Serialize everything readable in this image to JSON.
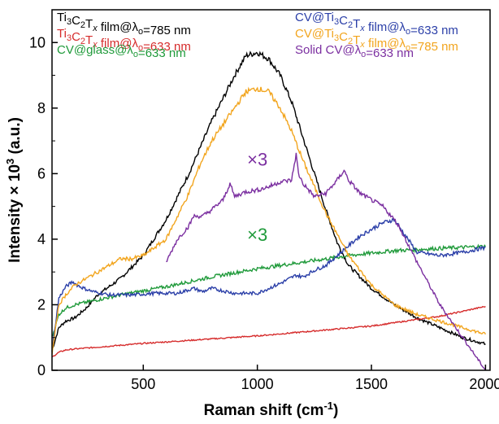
{
  "chart_data": {
    "type": "line",
    "title": "",
    "xlabel": "Raman shift (cm",
    "xlabel_sup": "-1",
    "xlabel_tail": ")",
    "ylabel": "Intensity × 10",
    "ylabel_sup": "3",
    "ylabel_tail": " (a.u.)",
    "xlim": [
      100,
      2020
    ],
    "ylim": [
      0,
      11
    ],
    "xticks": [
      500,
      1000,
      1500,
      2000
    ],
    "yticks": [
      0,
      2,
      4,
      6,
      8,
      10
    ],
    "legend_placement": "top",
    "annotations": [
      {
        "text": "×3",
        "x": 1000,
        "y": 6.25,
        "color": "#7b2fa0"
      },
      {
        "text": "×3",
        "x": 1000,
        "y": 3.95,
        "color": "#1f9a3a"
      }
    ],
    "series": [
      {
        "name": "Ti3C2Tx film@λo=785 nm",
        "color": "#000000",
        "x": [
          100,
          130,
          160,
          200,
          250,
          300,
          400,
          500,
          600,
          700,
          800,
          900,
          950,
          1000,
          1050,
          1100,
          1150,
          1200,
          1250,
          1300,
          1350,
          1400,
          1500,
          1600,
          1700,
          1800,
          1900,
          2000
        ],
        "y": [
          0.6,
          1.3,
          1.5,
          1.6,
          1.9,
          2.3,
          2.8,
          3.5,
          4.6,
          6.0,
          7.6,
          9.0,
          9.6,
          9.7,
          9.5,
          9.0,
          8.2,
          7.1,
          6.0,
          4.9,
          3.9,
          3.2,
          2.5,
          2.0,
          1.6,
          1.3,
          1.0,
          0.8
        ]
      },
      {
        "name": "Ti3C2Tx film@λo=633 nm",
        "color": "#d62c2c",
        "x": [
          100,
          130,
          160,
          200,
          500,
          1000,
          1500,
          1800,
          2000
        ],
        "y": [
          0.4,
          0.55,
          0.62,
          0.65,
          0.82,
          1.05,
          1.35,
          1.65,
          1.95
        ]
      },
      {
        "name": "CV@glass@λo=633 nm",
        "color": "#1f9a3a",
        "x": [
          100,
          130,
          160,
          200,
          400,
          600,
          800,
          1000,
          1200,
          1400,
          1600,
          1800,
          2000
        ],
        "y": [
          1.0,
          1.7,
          1.9,
          2.0,
          2.3,
          2.55,
          2.85,
          3.1,
          3.3,
          3.5,
          3.65,
          3.72,
          3.78
        ]
      },
      {
        "name": "CV@Ti3C2Tx film@λo=633 nm",
        "color": "#2b3fa8",
        "x": [
          100,
          130,
          160,
          190,
          210,
          240,
          280,
          350,
          450,
          550,
          650,
          720,
          760,
          800,
          900,
          1000,
          1100,
          1170,
          1200,
          1250,
          1300,
          1350,
          1400,
          1450,
          1500,
          1550,
          1600,
          1620,
          1700,
          1800,
          1900,
          2000
        ],
        "y": [
          0.6,
          2.2,
          2.55,
          2.7,
          2.6,
          2.5,
          2.4,
          2.3,
          2.3,
          2.35,
          2.35,
          2.5,
          2.4,
          2.5,
          2.35,
          2.35,
          2.65,
          2.9,
          2.85,
          3.05,
          3.2,
          3.5,
          3.8,
          4.1,
          4.3,
          4.5,
          4.6,
          4.4,
          3.6,
          3.5,
          3.6,
          3.75
        ]
      },
      {
        "name": "CV@Ti3C2Tx film@λo=785 nm",
        "color": "#f2a51e",
        "x": [
          100,
          130,
          160,
          200,
          250,
          300,
          400,
          450,
          500,
          600,
          700,
          750,
          800,
          900,
          950,
          1000,
          1050,
          1100,
          1150,
          1200,
          1300,
          1400,
          1500,
          1600,
          1700,
          1800,
          1900,
          2000
        ],
        "y": [
          0.5,
          2.0,
          2.3,
          2.6,
          2.8,
          3.0,
          3.4,
          3.4,
          3.5,
          4.0,
          5.4,
          6.3,
          7.0,
          8.0,
          8.5,
          8.6,
          8.5,
          8.0,
          7.3,
          6.4,
          4.8,
          3.5,
          2.6,
          2.0,
          1.7,
          1.5,
          1.3,
          1.1
        ]
      },
      {
        "name": "Solid CV@λo=633 nm",
        "color": "#7b2fa0",
        "x": [
          600,
          650,
          700,
          720,
          760,
          800,
          850,
          880,
          900,
          950,
          1000,
          1050,
          1100,
          1150,
          1170,
          1180,
          1200,
          1250,
          1300,
          1350,
          1380,
          1400,
          1450,
          1500,
          1550,
          1600,
          1620,
          1700,
          1800,
          1900,
          2000
        ],
        "y": [
          3.3,
          4.0,
          4.4,
          4.7,
          4.7,
          4.9,
          5.2,
          5.7,
          5.3,
          5.45,
          5.5,
          5.6,
          5.75,
          5.8,
          6.6,
          6.0,
          5.7,
          5.3,
          5.4,
          5.8,
          6.1,
          5.8,
          5.4,
          5.2,
          5.0,
          4.6,
          4.4,
          3.3,
          2.0,
          1.0,
          0.0
        ]
      }
    ]
  },
  "legend": {
    "left": [
      {
        "id": "s0",
        "base": "Ti",
        "sub1": "3",
        "mid": "C",
        "sub2": "2",
        "mid2": "T",
        "subx": "x",
        "tail": " film@λ",
        "subo": "o",
        "end": "=785 nm",
        "color": "#000000"
      },
      {
        "id": "s1",
        "base": "Ti",
        "sub1": "3",
        "mid": "C",
        "sub2": "2",
        "mid2": "T",
        "subx": "x",
        "tail": " film@λ",
        "subo": "o",
        "end": "=633 nm",
        "color": "#d62c2c"
      },
      {
        "id": "s2",
        "plain": "CV@glass@λ",
        "subo": "o",
        "end": "=633 nm",
        "color": "#1f9a3a"
      }
    ],
    "right": [
      {
        "id": "s3",
        "pre": "CV@Ti",
        "sub1": "3",
        "mid": "C",
        "sub2": "2",
        "mid2": "T",
        "subx": "x",
        "tail": " film@λ",
        "subo": "o",
        "end": "=633 nm",
        "color": "#2b3fa8"
      },
      {
        "id": "s4",
        "pre": "CV@Ti",
        "sub1": "3",
        "mid": "C",
        "sub2": "2",
        "mid2": "T",
        "subx": "x",
        "tail": " film@λ",
        "subo": "o",
        "end": "=785 nm",
        "color": "#f2a51e"
      },
      {
        "id": "s5",
        "plain": "Solid CV@λ",
        "subo": "o",
        "end": "=633 nm",
        "color": "#7b2fa0"
      }
    ]
  }
}
